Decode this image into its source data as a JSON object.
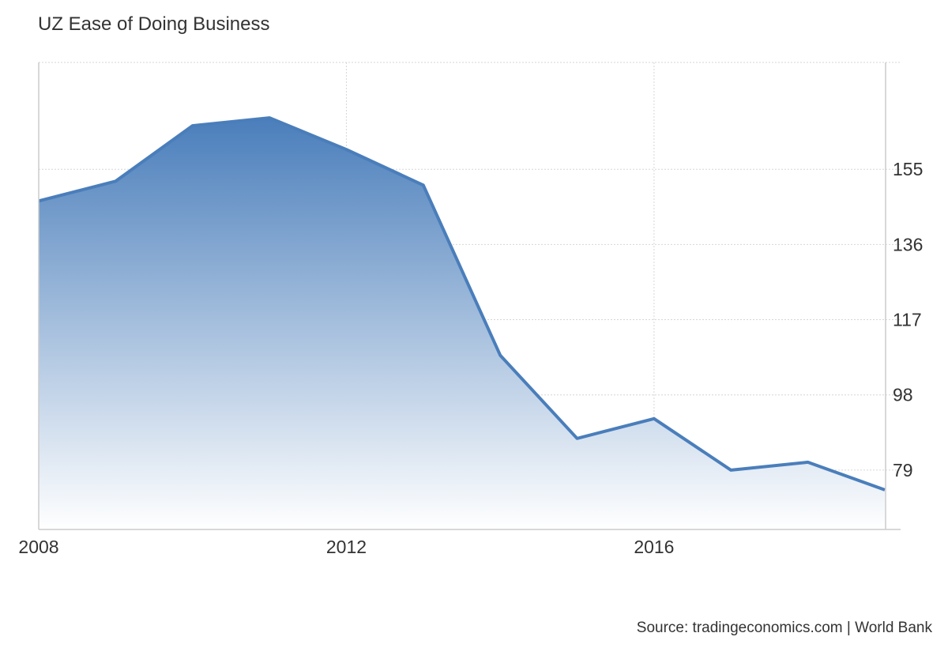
{
  "chart_data": {
    "type": "area",
    "title": "UZ Ease of Doing Business",
    "x": [
      2008,
      2009,
      2010,
      2011,
      2012,
      2013,
      2014,
      2015,
      2016,
      2017,
      2018,
      2019
    ],
    "series": [
      {
        "values": [
          147,
          152,
          166,
          168,
          160,
          151,
          108,
          87,
          92,
          79,
          81,
          74
        ]
      }
    ],
    "x_ticks": [
      "2008",
      "2012",
      "2016"
    ],
    "y_ticks": [
      "79",
      "98",
      "117",
      "136",
      "155"
    ],
    "xlim": [
      2008,
      2019
    ],
    "ylim": [
      64,
      182
    ],
    "y_axis_position": "right",
    "grid": true,
    "colors": {
      "line": "#4a7ebb",
      "fill_top": "#4a7ebb",
      "fill_bottom": "#ffffff",
      "grid": "#d6d6d6",
      "axis": "#cccccc"
    }
  },
  "source": "Source: tradingeconomics.com | World Bank"
}
